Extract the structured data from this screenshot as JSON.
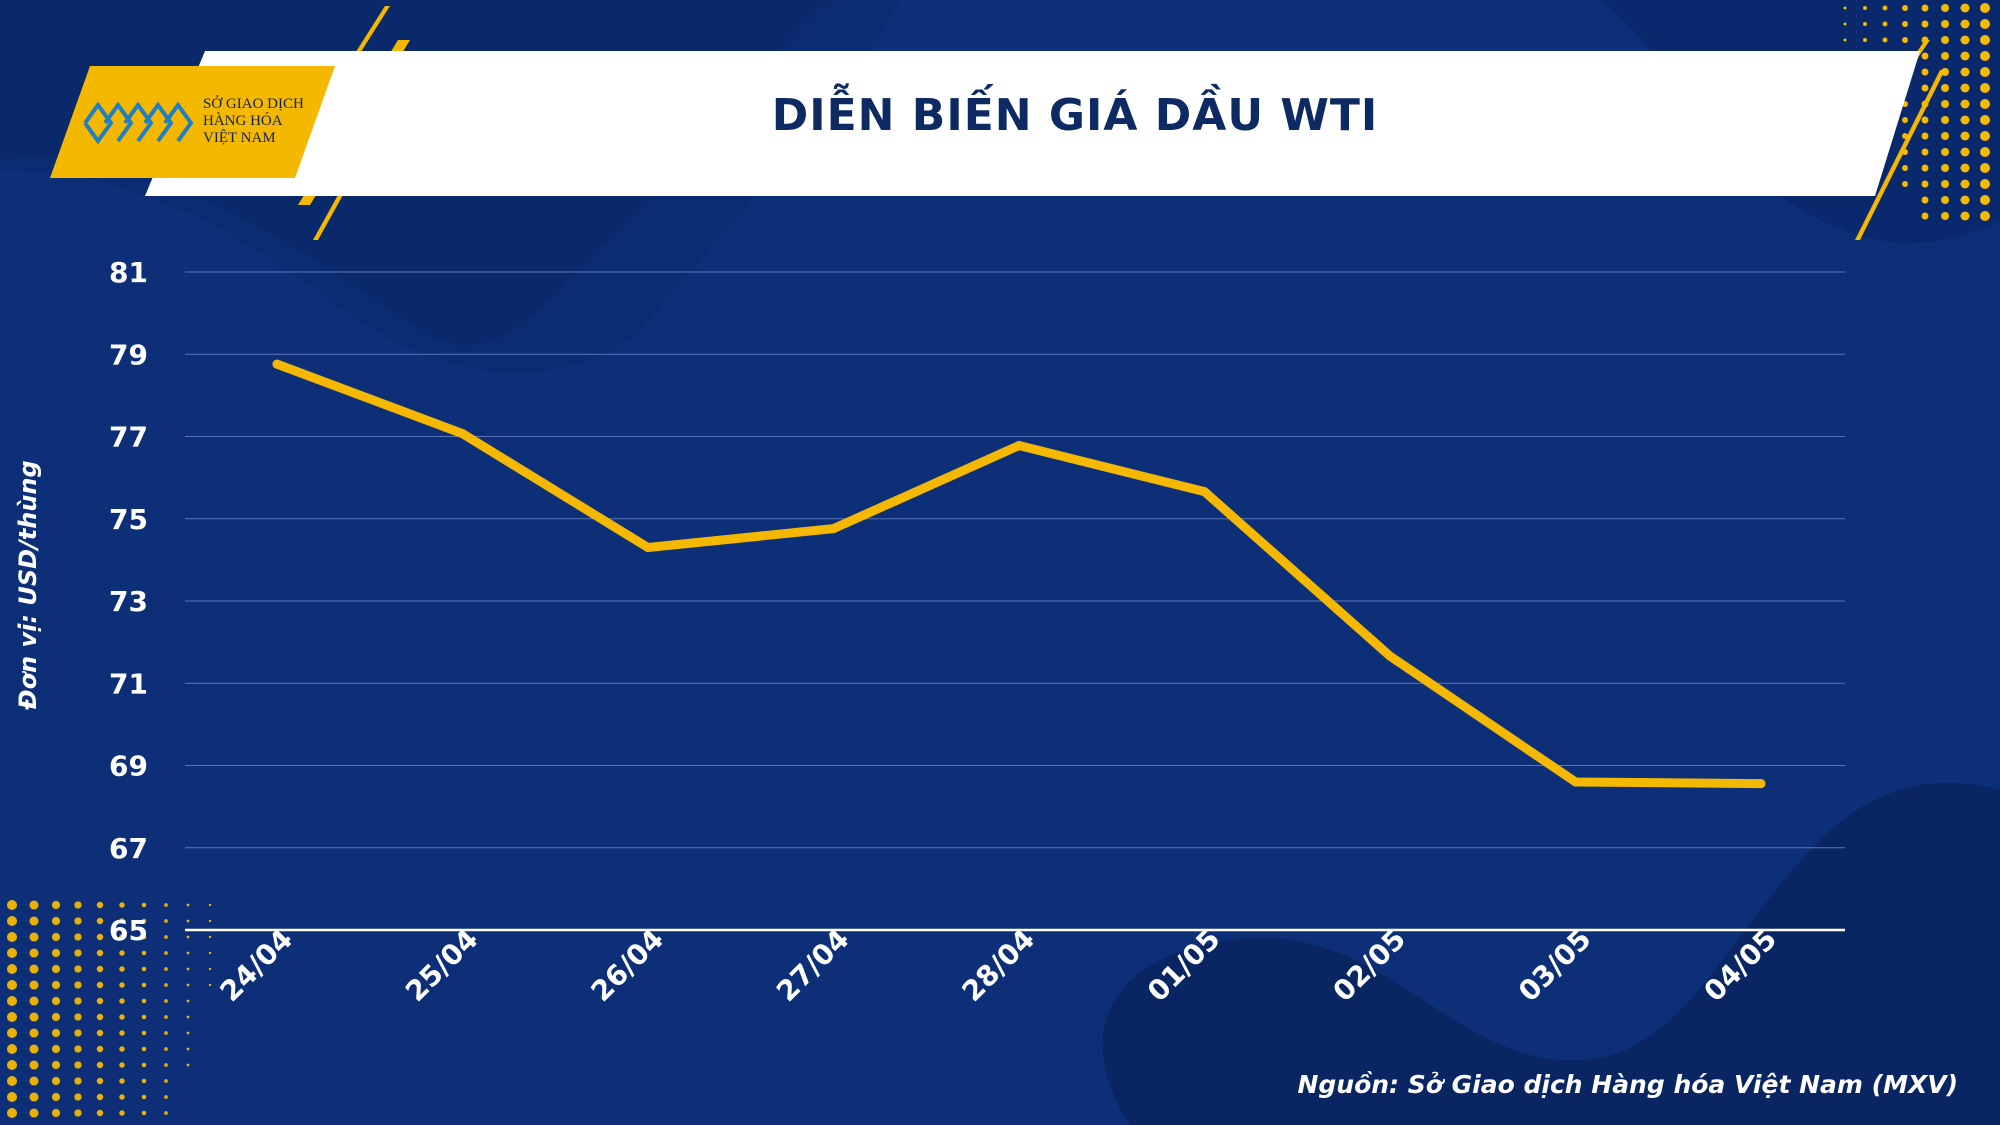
{
  "header": {
    "title": "DIỄN BIẾN GIÁ DẦU WTI",
    "logo_text": "SỞ GIAO DỊCH\nHÀNG HÓA\nVIỆT NAM"
  },
  "source": "Nguồn: Sở Giao dịch Hàng hóa Việt Nam (MXV)",
  "colors": {
    "background": "#0d2f78",
    "line": "#f5b800",
    "accent": "#f5b800",
    "text": "#ffffff"
  },
  "chart_data": {
    "type": "line",
    "title": "DIỄN BIẾN GIÁ DẦU WTI",
    "xlabel": "",
    "ylabel": "Đơn vị: USD/thùng",
    "categories": [
      "24/04",
      "25/04",
      "26/04",
      "27/04",
      "28/04",
      "01/05",
      "02/05",
      "03/05",
      "04/05"
    ],
    "series": [
      {
        "values": [
          78.76,
          77.07,
          74.3,
          74.76,
          76.78,
          75.66,
          71.66,
          68.6,
          68.56
        ]
      }
    ],
    "ylim": [
      65,
      81
    ],
    "yticks": [
      65,
      67,
      69,
      71,
      73,
      75,
      77,
      79,
      81
    ],
    "grid": true,
    "legend": "none"
  }
}
